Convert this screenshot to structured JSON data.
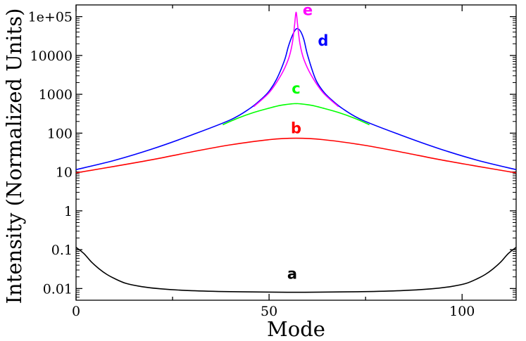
{
  "chart_data": {
    "type": "line",
    "xlabel": "Mode",
    "ylabel": "Intensity (Normalized Units)",
    "xlim": [
      0,
      114
    ],
    "ylim": [
      0.005,
      200000
    ],
    "y_scale": "log",
    "grid": false,
    "x_ticks": [
      {
        "value": 0,
        "label": "0"
      },
      {
        "value": 50,
        "label": "50"
      },
      {
        "value": 100,
        "label": "100"
      }
    ],
    "y_ticks": [
      {
        "value": 0.01,
        "label": "0.01"
      },
      {
        "value": 0.1,
        "label": "0.1"
      },
      {
        "value": 1,
        "label": "1"
      },
      {
        "value": 10,
        "label": "10"
      },
      {
        "value": 100,
        "label": "100"
      },
      {
        "value": 1000,
        "label": "1000"
      },
      {
        "value": 10000,
        "label": "10000"
      },
      {
        "value": 100000,
        "label": "1e+05"
      }
    ],
    "series": [
      {
        "name": "a",
        "color": "#000000",
        "label_pos": [
          56,
          0.018
        ],
        "x": [
          0,
          2,
          4,
          6,
          8,
          10,
          13,
          17,
          22,
          30,
          40,
          50,
          57,
          64,
          74,
          84,
          92,
          97,
          101,
          104,
          106,
          108,
          110,
          112,
          114
        ],
        "y": [
          0.115,
          0.08,
          0.048,
          0.032,
          0.023,
          0.018,
          0.0135,
          0.0112,
          0.0098,
          0.0088,
          0.0083,
          0.0081,
          0.008,
          0.0081,
          0.0083,
          0.0088,
          0.0098,
          0.0112,
          0.0135,
          0.018,
          0.023,
          0.032,
          0.048,
          0.08,
          0.115
        ]
      },
      {
        "name": "b",
        "color": "#ff0000",
        "label_pos": [
          57,
          100
        ],
        "x": [
          0,
          10,
          20,
          30,
          40,
          50,
          57,
          64,
          74,
          84,
          94,
          104,
          114
        ],
        "y": [
          9.5,
          14,
          21,
          33,
          50,
          68,
          74,
          68,
          50,
          33,
          21,
          14,
          9.5
        ]
      },
      {
        "name": "c",
        "color": "#00ff00",
        "label_pos": [
          57,
          1050
        ],
        "x": [
          38,
          42,
          46,
          50,
          53,
          56,
          57,
          58,
          61,
          64,
          68,
          72,
          76
        ],
        "y": [
          165,
          245,
          340,
          440,
          520,
          570,
          575,
          570,
          520,
          440,
          340,
          245,
          165
        ]
      },
      {
        "name": "d",
        "color": "#0000ff",
        "label_pos": [
          64,
          18000
        ],
        "x": [
          0,
          10,
          20,
          30,
          40,
          45,
          48,
          50,
          52,
          54,
          55,
          56,
          57,
          58,
          59,
          60,
          62,
          64,
          66,
          69,
          74,
          84,
          94,
          104,
          114
        ],
        "y": [
          11.5,
          20,
          40,
          90,
          220,
          430,
          750,
          1200,
          2500,
          7500,
          17000,
          32000,
          48000,
          44000,
          26000,
          10000,
          2500,
          1200,
          750,
          430,
          220,
          90,
          40,
          20,
          11.5
        ]
      },
      {
        "name": "e",
        "color": "#ff00ff",
        "label_pos": [
          60,
          110000
        ],
        "x": [
          46,
          50,
          53,
          55,
          56,
          56.6,
          57,
          57.4,
          58,
          59,
          61,
          64,
          68
        ],
        "y": [
          480,
          1100,
          3000,
          8000,
          20000,
          60000,
          130000,
          60000,
          20000,
          8000,
          3000,
          1100,
          480
        ]
      }
    ]
  }
}
